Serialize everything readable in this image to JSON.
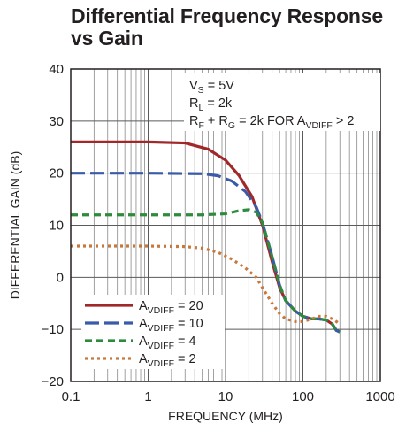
{
  "title_line1": "Differential Frequency Response",
  "title_line2": "vs Gain",
  "chart_data": {
    "type": "line",
    "title": "Differential Frequency Response vs Gain",
    "xlabel": "FREQUENCY (MHz)",
    "ylabel": "DIFFERENTIAL GAIN (dB)",
    "xscale": "log",
    "xlim": [
      0.1,
      1000
    ],
    "ylim": [
      -20,
      40
    ],
    "xticks": [
      0.1,
      1,
      10,
      100,
      1000
    ],
    "xticklabels": [
      "0.1",
      "1",
      "10",
      "100",
      "1000"
    ],
    "yticks": [
      -20,
      -10,
      0,
      10,
      20,
      30,
      40
    ],
    "yticklabels": [
      "−20",
      "−10",
      "0",
      "10",
      "20",
      "30",
      "40"
    ],
    "grid": true,
    "legend_position": "bottom-left",
    "annotations": [
      {
        "main": "V",
        "sub": "S",
        "rest": " = 5V"
      },
      {
        "main": "R",
        "sub": "L",
        "rest": " = 2k"
      },
      {
        "main": "R",
        "sub": "F",
        "mid": " + R",
        "sub2": "G",
        "mid2": " = 2k FOR A",
        "sub3": "VDIFF",
        "rest": " > 2"
      }
    ],
    "series": [
      {
        "name_main": "A",
        "name_sub": "VDIFF",
        "name_rest": " = 20",
        "color": "#a0282a",
        "dash": "solid",
        "points": [
          [
            0.1,
            26
          ],
          [
            1,
            26
          ],
          [
            3,
            25.8
          ],
          [
            6,
            24.6
          ],
          [
            10,
            22.5
          ],
          [
            15,
            19.5
          ],
          [
            22,
            15.5
          ],
          [
            30,
            10
          ],
          [
            40,
            3
          ],
          [
            50,
            -2
          ],
          [
            60,
            -4.5
          ],
          [
            80,
            -6.5
          ],
          [
            100,
            -7.5
          ],
          [
            130,
            -8
          ],
          [
            160,
            -8
          ],
          [
            200,
            -8.2
          ],
          [
            240,
            -9
          ],
          [
            270,
            -10.2
          ],
          [
            300,
            -10.5
          ]
        ]
      },
      {
        "name_main": "A",
        "name_sub": "VDIFF",
        "name_rest": " = 10",
        "color": "#3a5ba8",
        "dash": "long",
        "points": [
          [
            0.1,
            20
          ],
          [
            1,
            20
          ],
          [
            5,
            19.9
          ],
          [
            8,
            19.5
          ],
          [
            12,
            18.5
          ],
          [
            18,
            16.5
          ],
          [
            25,
            13.5
          ],
          [
            30,
            10.5
          ],
          [
            40,
            4
          ],
          [
            50,
            -1.5
          ],
          [
            60,
            -4.5
          ],
          [
            80,
            -6.5
          ],
          [
            100,
            -7.5
          ],
          [
            130,
            -8
          ],
          [
            160,
            -8
          ],
          [
            200,
            -8.2
          ],
          [
            240,
            -9
          ],
          [
            270,
            -10.2
          ],
          [
            300,
            -10.5
          ]
        ]
      },
      {
        "name_main": "A",
        "name_sub": "VDIFF",
        "name_rest": " = 4",
        "color": "#2e8b3d",
        "dash": "medium",
        "points": [
          [
            0.1,
            12
          ],
          [
            1,
            12
          ],
          [
            5,
            12
          ],
          [
            10,
            12.2
          ],
          [
            15,
            12.8
          ],
          [
            20,
            13
          ],
          [
            25,
            12.5
          ],
          [
            30,
            10.5
          ],
          [
            40,
            4
          ],
          [
            50,
            -1.5
          ],
          [
            60,
            -4.5
          ],
          [
            80,
            -6.5
          ],
          [
            100,
            -7.5
          ],
          [
            130,
            -8
          ],
          [
            160,
            -8
          ],
          [
            200,
            -8.2
          ],
          [
            240,
            -9
          ],
          [
            270,
            -10.2
          ],
          [
            300,
            -10.5
          ]
        ]
      },
      {
        "name_main": "A",
        "name_sub": "VDIFF",
        "name_rest": " = 2",
        "color": "#c8783a",
        "dash": "dotted",
        "points": [
          [
            0.1,
            6
          ],
          [
            1,
            6
          ],
          [
            3,
            5.9
          ],
          [
            5,
            5.6
          ],
          [
            8,
            4.8
          ],
          [
            12,
            3.5
          ],
          [
            18,
            1.8
          ],
          [
            25,
            0
          ],
          [
            30,
            -2
          ],
          [
            40,
            -5
          ],
          [
            50,
            -7
          ],
          [
            60,
            -8
          ],
          [
            80,
            -8.5
          ],
          [
            100,
            -8.5
          ],
          [
            130,
            -8
          ],
          [
            160,
            -7.5
          ],
          [
            200,
            -7.5
          ],
          [
            240,
            -8
          ],
          [
            270,
            -8.5
          ],
          [
            300,
            -9
          ]
        ]
      }
    ]
  }
}
